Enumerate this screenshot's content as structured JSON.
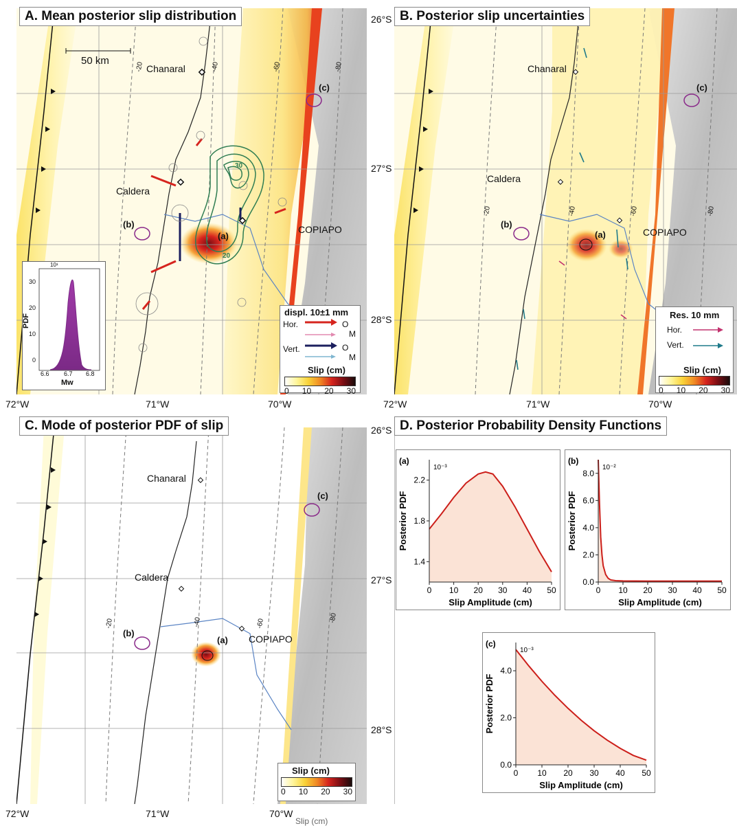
{
  "panels": {
    "A": {
      "title": "A. Mean posterior slip distribution",
      "scale_label": "50 km",
      "places": {
        "chanaral": "Chanaral",
        "caldera": "Caldera",
        "copiapo": "COPIAPO"
      },
      "markers": {
        "a": "(a)",
        "b": "(b)",
        "c": "(c)"
      },
      "contours": [
        "-20",
        "-40",
        "-60",
        "-80"
      ],
      "slip_contours": [
        "30",
        "20"
      ],
      "legend": {
        "title": "displ. 10±1 mm",
        "hor": "Hor.",
        "vert": "Vert.",
        "o": "O",
        "m": "M",
        "slip_title": "Slip (cm)",
        "ticks": [
          "0",
          "10",
          "20",
          "30"
        ]
      },
      "inset": {
        "ylabel": "PDF",
        "xlabel": "Mw",
        "exponent": "10¹",
        "yticks": [
          "30",
          "20",
          "10",
          "0"
        ],
        "xticks": [
          "6.6",
          "6.7",
          "6.8"
        ]
      }
    },
    "B": {
      "title": "B. Posterior slip uncertainties",
      "places": {
        "chanaral": "Chanaral",
        "caldera": "Caldera",
        "copiapo": "COPIAPO"
      },
      "markers": {
        "a": "(a)",
        "b": "(b)",
        "c": "(c)"
      },
      "contours": [
        "-20",
        "-40",
        "-60",
        "-80"
      ],
      "legend": {
        "title": "Res. 10 mm",
        "hor": "Hor.",
        "vert": "Vert.",
        "slip_title": "Slip (cm)",
        "ticks": [
          "0",
          "10",
          "20",
          "30"
        ]
      }
    },
    "C": {
      "title": "C. Mode of posterior PDF of slip",
      "places": {
        "chanaral": "Chanaral",
        "caldera": "Caldera",
        "copiapo": "COPIAPO"
      },
      "markers": {
        "a": "(a)",
        "b": "(b)",
        "c": "(c)"
      },
      "contours": [
        "-20",
        "-40",
        "-60",
        "-80"
      ],
      "legend": {
        "slip_title": "Slip (cm)",
        "ticks": [
          "0",
          "10",
          "20",
          "30"
        ]
      }
    },
    "D": {
      "title": "D. Posterior Probability Density Functions"
    }
  },
  "axes": {
    "lon_ticks": [
      "72°W",
      "71°W",
      "70°W"
    ],
    "lat_ticks": [
      "26°S",
      "27°S",
      "28°S"
    ],
    "bottom_cut_text": "Slip (cm)"
  },
  "colors": {
    "slip_red": "#d6241e",
    "vert_arrow": "#1b1f5e",
    "contour": "#2f7d52",
    "marker": "#8a2a8a",
    "pdf_fill": "#fbe3d6",
    "pdf_line": "#cc1f1a"
  },
  "chart_data": [
    {
      "type": "line",
      "id": "a",
      "panel_label": "(a)",
      "xlabel": "Slip Amplitude (cm)",
      "ylabel": "Posterior PDF",
      "exponent": "10⁻³",
      "xlim": [
        0,
        50
      ],
      "ylim": [
        1.2,
        2.4
      ],
      "xticks": [
        0,
        10,
        20,
        30,
        40,
        50
      ],
      "yticks": [
        1.4,
        1.8,
        2.2
      ],
      "x": [
        0,
        5,
        10,
        15,
        20,
        23,
        26,
        30,
        35,
        40,
        45,
        50
      ],
      "y": [
        1.72,
        1.87,
        2.03,
        2.17,
        2.26,
        2.28,
        2.26,
        2.14,
        1.94,
        1.72,
        1.5,
        1.3
      ]
    },
    {
      "type": "line",
      "id": "b",
      "panel_label": "(b)",
      "xlabel": "Slip Amplitude (cm)",
      "ylabel": "Posterior PDF",
      "exponent": "10⁻²",
      "xlim": [
        0,
        50
      ],
      "ylim": [
        0,
        9
      ],
      "xticks": [
        0,
        10,
        20,
        30,
        40,
        50
      ],
      "yticks": [
        0.0,
        2.0,
        4.0,
        6.0,
        8.0
      ],
      "x": [
        0,
        0.5,
        1,
        1.5,
        2,
        3,
        4,
        5,
        7,
        10,
        20,
        30,
        40,
        50
      ],
      "y": [
        9.0,
        5.8,
        3.3,
        2.0,
        1.2,
        0.55,
        0.28,
        0.16,
        0.1,
        0.08,
        0.07,
        0.07,
        0.07,
        0.07
      ]
    },
    {
      "type": "line",
      "id": "c",
      "panel_label": "(c)",
      "xlabel": "Slip Amplitude (cm)",
      "ylabel": "Posterior PDF",
      "exponent": "10⁻³",
      "xlim": [
        0,
        50
      ],
      "ylim": [
        0,
        5.2
      ],
      "xticks": [
        0,
        10,
        20,
        30,
        40,
        50
      ],
      "yticks": [
        0.0,
        2.0,
        4.0
      ],
      "x": [
        0,
        5,
        10,
        15,
        20,
        25,
        30,
        35,
        40,
        45,
        50
      ],
      "y": [
        4.9,
        4.2,
        3.55,
        2.95,
        2.4,
        1.9,
        1.45,
        1.05,
        0.7,
        0.4,
        0.2
      ]
    }
  ]
}
